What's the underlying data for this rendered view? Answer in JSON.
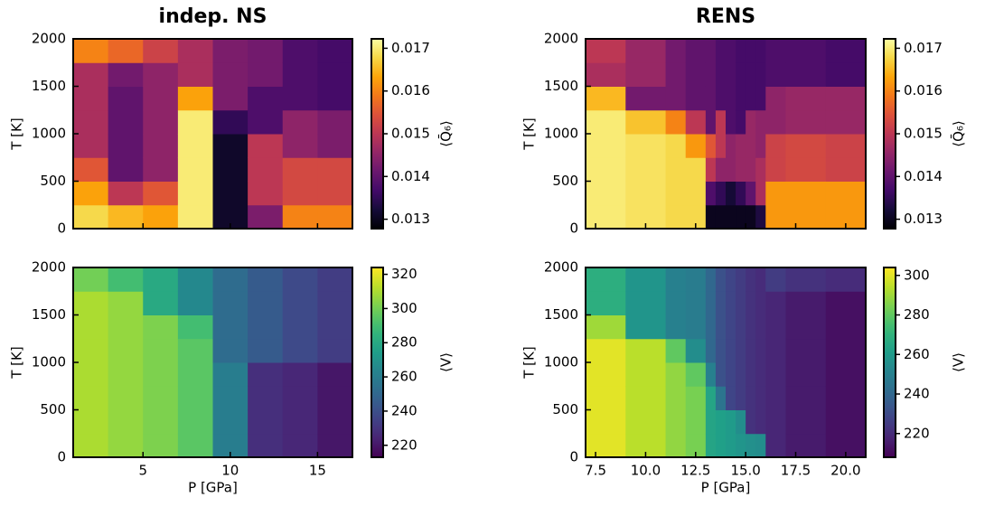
{
  "chart_data": [
    {
      "type": "heatmap",
      "title": "indep. NS",
      "ylabel": "T [K]",
      "colorbar_label": "⟨Q̄₆⟩",
      "cmap": "inferno",
      "x_edges": [
        1,
        3,
        5,
        7,
        9,
        11,
        13,
        15,
        17
      ],
      "y_edges": [
        0,
        250,
        500,
        750,
        1000,
        1250,
        1500,
        1750,
        2000
      ],
      "values": [
        [
          0.0168,
          0.0163,
          0.0155,
          0.0148,
          0.0148,
          0.0148,
          0.0148,
          0.016
        ],
        [
          0.0165,
          0.015,
          0.014,
          0.014,
          0.014,
          0.014,
          0.0142,
          0.0157
        ],
        [
          0.0163,
          0.0155,
          0.0145,
          0.0145,
          0.0145,
          0.0145,
          0.0145,
          0.0152
        ],
        [
          0.017,
          0.017,
          0.017,
          0.017,
          0.017,
          0.0163,
          0.0148,
          0.0148
        ],
        [
          0.0131,
          0.0131,
          0.0131,
          0.0131,
          0.0135,
          0.0143,
          0.0143,
          0.0143
        ],
        [
          0.0143,
          0.015,
          0.015,
          0.015,
          0.0138,
          0.0138,
          0.0142,
          0.0142
        ],
        [
          0.016,
          0.0153,
          0.0153,
          0.0145,
          0.0145,
          0.0138,
          0.0138,
          0.0138
        ],
        [
          0.016,
          0.0153,
          0.0153,
          0.0143,
          0.0143,
          0.0137,
          0.0137,
          0.0137
        ]
      ],
      "clim": [
        0.01278,
        0.01722
      ],
      "cticks": [
        0.013,
        0.014,
        0.015,
        0.016,
        0.017
      ],
      "xlim": [
        1,
        17
      ],
      "ylim": [
        0,
        2000
      ],
      "xticks": [
        5,
        10,
        15
      ],
      "xtick_labels": false,
      "yticks": [
        0,
        500,
        1000,
        1500,
        2000
      ]
    },
    {
      "type": "heatmap",
      "title": "RENS",
      "ylabel": "T [K]",
      "colorbar_label": "⟨Q̄₆⟩",
      "cmap": "inferno",
      "x_edges": [
        7,
        9,
        11,
        12,
        13,
        13.5,
        14,
        14.5,
        15,
        15.5,
        16,
        17,
        19,
        21
      ],
      "y_edges": [
        0,
        250,
        500,
        750,
        1000,
        1250,
        1500,
        1750,
        2000
      ],
      "values": [
        [
          0.017,
          0.017,
          0.017,
          0.017,
          0.017,
          0.0165,
          0.0148,
          0.015
        ],
        [
          0.0169,
          0.0169,
          0.0169,
          0.0169,
          0.0166,
          0.0142,
          0.0146,
          0.0146
        ],
        [
          0.0168,
          0.0168,
          0.0168,
          0.0168,
          0.016,
          0.0142,
          0.0142,
          0.0142
        ],
        [
          0.0168,
          0.0168,
          0.0168,
          0.0162,
          0.015,
          0.014,
          0.014,
          0.014
        ],
        [
          0.013,
          0.0138,
          0.015,
          0.0155,
          0.014,
          0.014,
          0.014,
          0.014
        ],
        [
          0.013,
          0.0135,
          0.0145,
          0.015,
          0.015,
          0.0138,
          0.0138,
          0.0138
        ],
        [
          0.013,
          0.0132,
          0.0145,
          0.0145,
          0.0138,
          0.0138,
          0.0138,
          0.0138
        ],
        [
          0.013,
          0.0135,
          0.0146,
          0.0146,
          0.0137,
          0.0137,
          0.0137,
          0.0137
        ],
        [
          0.013,
          0.014,
          0.0146,
          0.0146,
          0.0146,
          0.0137,
          0.0137,
          0.0137
        ],
        [
          0.0133,
          0.0148,
          0.0148,
          0.0145,
          0.0145,
          0.0137,
          0.0137,
          0.0137
        ],
        [
          0.0162,
          0.0162,
          0.0152,
          0.0152,
          0.0145,
          0.0145,
          0.0138,
          0.0138
        ],
        [
          0.0162,
          0.0162,
          0.0153,
          0.0153,
          0.0146,
          0.0146,
          0.0138,
          0.0138
        ],
        [
          0.0162,
          0.0162,
          0.0152,
          0.0152,
          0.0146,
          0.0146,
          0.0137,
          0.0137
        ]
      ],
      "clim": [
        0.01278,
        0.01722
      ],
      "cticks": [
        0.013,
        0.014,
        0.015,
        0.016,
        0.017
      ],
      "xlim": [
        7,
        21
      ],
      "ylim": [
        0,
        2000
      ],
      "xticks": [
        7.5,
        10,
        12.5,
        15,
        17.5,
        20
      ],
      "xtick_labels": false,
      "yticks": [
        0,
        500,
        1000,
        1500,
        2000
      ]
    },
    {
      "type": "heatmap",
      "xlabel": "P [GPa]",
      "ylabel": "T [K]",
      "colorbar_label": "⟨V⟩",
      "cmap": "viridis",
      "x_edges": [
        1,
        3,
        5,
        7,
        9,
        11,
        13,
        15,
        17
      ],
      "y_edges": [
        0,
        250,
        500,
        750,
        1000,
        1250,
        1500,
        1750,
        2000
      ],
      "values": [
        [
          310,
          310,
          310,
          310,
          310,
          310,
          310,
          300
        ],
        [
          306,
          306,
          306,
          306,
          306,
          306,
          306,
          290
        ],
        [
          302,
          302,
          302,
          302,
          302,
          302,
          280,
          280
        ],
        [
          295,
          295,
          295,
          295,
          295,
          290,
          265,
          265
        ],
        [
          260,
          260,
          260,
          260,
          252,
          252,
          252,
          252
        ],
        [
          228,
          228,
          228,
          228,
          245,
          245,
          245,
          245
        ],
        [
          225,
          225,
          225,
          225,
          238,
          238,
          238,
          238
        ],
        [
          220,
          220,
          220,
          220,
          233,
          233,
          233,
          233
        ]
      ],
      "clim": [
        213,
        324
      ],
      "cticks": [
        220,
        240,
        260,
        280,
        300,
        320
      ],
      "xlim": [
        1,
        17
      ],
      "ylim": [
        0,
        2000
      ],
      "xticks": [
        5,
        10,
        15
      ],
      "xtick_labels": true,
      "yticks": [
        0,
        500,
        1000,
        1500,
        2000
      ]
    },
    {
      "type": "heatmap",
      "xlabel": "P [GPa]",
      "ylabel": "T [K]",
      "colorbar_label": "⟨V⟩",
      "cmap": "viridis",
      "x_edges": [
        7,
        9,
        11,
        12,
        13,
        13.5,
        14,
        14.5,
        15,
        15.5,
        16,
        17,
        19,
        21
      ],
      "y_edges": [
        0,
        250,
        500,
        750,
        1000,
        1250,
        1500,
        1750,
        2000
      ],
      "values": [
        [
          300,
          300,
          300,
          300,
          300,
          290,
          268,
          268
        ],
        [
          294,
          294,
          294,
          294,
          294,
          258,
          258,
          258
        ],
        [
          288,
          288,
          288,
          288,
          280,
          250,
          250,
          250
        ],
        [
          284,
          284,
          284,
          280,
          255,
          248,
          248,
          248
        ],
        [
          264,
          264,
          264,
          250,
          240,
          240,
          240,
          240
        ],
        [
          262,
          262,
          245,
          232,
          232,
          232,
          232,
          232
        ],
        [
          260,
          260,
          228,
          228,
          228,
          228,
          228,
          228
        ],
        [
          258,
          255,
          225,
          225,
          225,
          225,
          225,
          225
        ],
        [
          256,
          222,
          222,
          222,
          222,
          222,
          222,
          222
        ],
        [
          255,
          220,
          220,
          220,
          220,
          220,
          220,
          220
        ],
        [
          218,
          218,
          218,
          218,
          218,
          218,
          218,
          225
        ],
        [
          215,
          215,
          215,
          215,
          215,
          215,
          215,
          222
        ],
        [
          212,
          212,
          212,
          212,
          212,
          212,
          212,
          220
        ]
      ],
      "clim": [
        208,
        304
      ],
      "cticks": [
        220,
        240,
        260,
        280,
        300
      ],
      "xlim": [
        7,
        21
      ],
      "ylim": [
        0,
        2000
      ],
      "xticks": [
        7.5,
        {
          "value": 10,
          "label": "10.0"
        },
        12.5,
        {
          "value": 15,
          "label": "15.0"
        },
        17.5,
        {
          "value": 20,
          "label": "20.0"
        }
      ],
      "xtick_labels": true,
      "yticks": [
        0,
        500,
        1000,
        1500,
        2000
      ]
    }
  ]
}
